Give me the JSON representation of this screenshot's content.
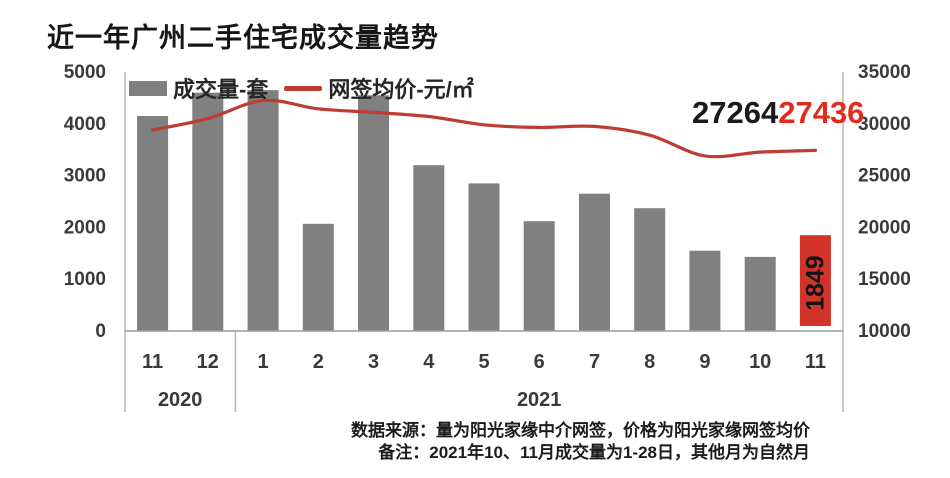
{
  "title": "近一年广州二手住宅成交量趋势",
  "legend": {
    "bars_label": "成交量-套",
    "line_label": "网签均价-元/㎡"
  },
  "annotations": {
    "oct_price_label": "27264",
    "nov_price_label": "27436",
    "highlight_bar_label": "1849"
  },
  "footer": {
    "line1": "数据来源：量为阳光家缘中介网签，价格为阳光家缘网签均价",
    "line2": "备注：2021年10、11月成交量为1-28日，其他月为自然月"
  },
  "colors": {
    "bar": "#808080",
    "bar_highlight": "#d2342a",
    "line": "#bd3c34",
    "annotation_black": "#1a1a1a",
    "annotation_red": "#e12b1d",
    "bar_label_text": "#141414",
    "axis_text": "#3a3a3a",
    "plot_border": "#b5b5b5",
    "baseline": "#9a9a9a"
  },
  "chart_data": {
    "type": "bar+line combo",
    "title": "近一年广州二手住宅成交量趋势",
    "categories": [
      "11",
      "12",
      "1",
      "2",
      "3",
      "4",
      "5",
      "6",
      "7",
      "8",
      "9",
      "10",
      "11"
    ],
    "year_groups": [
      {
        "label": "2020",
        "count": 2
      },
      {
        "label": "2021",
        "count": 11
      }
    ],
    "series": [
      {
        "name": "成交量-套",
        "type": "bar",
        "axis": "left",
        "values": [
          4150,
          4600,
          4650,
          2070,
          4550,
          3200,
          2850,
          2120,
          2650,
          2370,
          1550,
          1430,
          1849
        ],
        "highlight_index": 12,
        "data_labels": [
          {
            "index": 12,
            "text": "1849"
          }
        ]
      },
      {
        "name": "网签均价-元/㎡",
        "type": "line",
        "axis": "right",
        "values": [
          29400,
          30500,
          32250,
          31450,
          31100,
          30700,
          29900,
          29650,
          29750,
          28900,
          26900,
          27264,
          27436
        ],
        "data_labels": [
          {
            "index": 11,
            "text": "27264",
            "color": "black"
          },
          {
            "index": 12,
            "text": "27436",
            "color": "red"
          }
        ]
      }
    ],
    "left_axis": {
      "min": 0,
      "max": 5000,
      "step": 1000,
      "ticks": [
        "5000",
        "4000",
        "3000",
        "2000",
        "1000",
        "0"
      ]
    },
    "right_axis": {
      "min": 10000,
      "max": 35000,
      "step": 5000,
      "ticks": [
        "35000",
        "30000",
        "25000",
        "20000",
        "15000",
        "10000"
      ]
    },
    "grid": "off",
    "legend_position": "top-left-inside"
  }
}
